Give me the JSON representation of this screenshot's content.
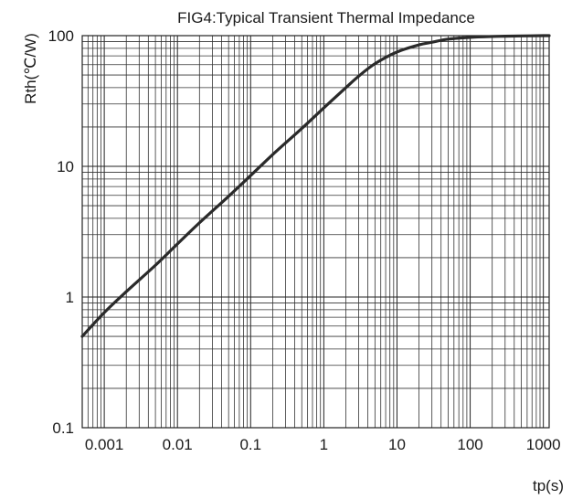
{
  "chart_data": {
    "type": "line",
    "title": "FIG4:Typical Transient Thermal Impedance",
    "xlabel": "tp(s)",
    "ylabel": "Rth(℃/W)",
    "x_scale": "log",
    "y_scale": "log",
    "xlim": [
      0.0005,
      1200
    ],
    "ylim": [
      0.1,
      100
    ],
    "grid": true,
    "x_tick_labels": [
      "0.001",
      "0.01",
      "0.1",
      "1",
      "10",
      "100",
      "1000"
    ],
    "x_tick_values": [
      0.001,
      0.01,
      0.1,
      1,
      10,
      100,
      1000
    ],
    "y_tick_labels": [
      "0.1",
      "1",
      "10",
      "100"
    ],
    "y_tick_values": [
      0.1,
      1,
      10,
      100
    ],
    "series": [
      {
        "color": "#2a2a2a",
        "x": [
          0.0005,
          0.001,
          0.002,
          0.005,
          0.01,
          0.02,
          0.05,
          0.1,
          0.2,
          0.5,
          1,
          2,
          3,
          5,
          10,
          20,
          30,
          50,
          100,
          200,
          300,
          500,
          1000,
          1200
        ],
        "y": [
          0.5,
          0.76,
          1.1,
          1.75,
          2.55,
          3.7,
          5.9,
          8.5,
          12.3,
          19.5,
          28,
          40,
          49,
          61,
          75,
          85,
          89,
          94,
          97,
          98.5,
          99,
          99.5,
          100,
          100
        ]
      }
    ]
  }
}
